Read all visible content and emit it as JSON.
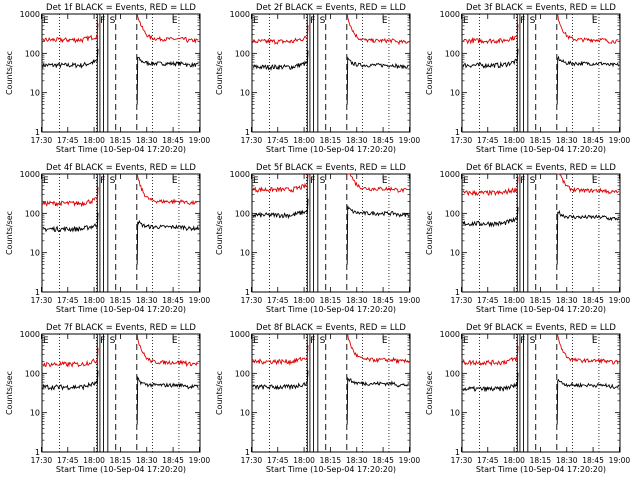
{
  "figure": {
    "xlabel": "Start Time (10-Sep-04 17:20:20)",
    "ylabel": "Counts/sec",
    "ytick_labels": [
      "1",
      "10",
      "100",
      "1000"
    ],
    "xtick_labels": [
      "17:30",
      "17:45",
      "18:00",
      "18:15",
      "18:30",
      "18:45",
      "19:00"
    ],
    "flag_letters": [
      "E",
      "F",
      "S",
      "E"
    ]
  },
  "chart_data": [
    {
      "type": "line",
      "title": "Det 1f BLACK = Events, RED = LLD",
      "yscale": "log",
      "ylim": [
        1,
        1000
      ],
      "xlim_min": [
        10,
        100
      ],
      "series": [
        {
          "color": "#000000",
          "level_before": 50,
          "level_after": 55
        },
        {
          "color": "#dd0000",
          "level_before": 220,
          "level_after": 230
        }
      ]
    },
    {
      "type": "line",
      "title": "Det 2f BLACK = Events, RED = LLD",
      "yscale": "log",
      "ylim": [
        1,
        1000
      ],
      "xlim_min": [
        10,
        100
      ],
      "series": [
        {
          "color": "#000000",
          "level_before": 45,
          "level_after": 50
        },
        {
          "color": "#dd0000",
          "level_before": 200,
          "level_after": 210
        }
      ]
    },
    {
      "type": "line",
      "title": "Det 3f BLACK = Events, RED = LLD",
      "yscale": "log",
      "ylim": [
        1,
        1000
      ],
      "xlim_min": [
        10,
        100
      ],
      "series": [
        {
          "color": "#000000",
          "level_before": 50,
          "level_after": 55
        },
        {
          "color": "#dd0000",
          "level_before": 210,
          "level_after": 220
        }
      ]
    },
    {
      "type": "line",
      "title": "Det 4f BLACK = Events, RED = LLD",
      "yscale": "log",
      "ylim": [
        1,
        1000
      ],
      "xlim_min": [
        10,
        100
      ],
      "series": [
        {
          "color": "#000000",
          "level_before": 40,
          "level_after": 45
        },
        {
          "color": "#dd0000",
          "level_before": 180,
          "level_after": 200
        }
      ]
    },
    {
      "type": "line",
      "title": "Det 5f BLACK = Events, RED = LLD",
      "yscale": "log",
      "ylim": [
        1,
        1000
      ],
      "xlim_min": [
        10,
        100
      ],
      "series": [
        {
          "color": "#000000",
          "level_before": 90,
          "level_after": 100
        },
        {
          "color": "#dd0000",
          "level_before": 400,
          "level_after": 420
        }
      ]
    },
    {
      "type": "line",
      "title": "Det 6f BLACK = Events, RED = LLD",
      "yscale": "log",
      "ylim": [
        1,
        1000
      ],
      "xlim_min": [
        10,
        100
      ],
      "series": [
        {
          "color": "#000000",
          "level_before": 55,
          "level_after": 80
        },
        {
          "color": "#dd0000",
          "level_before": 330,
          "level_after": 380
        }
      ]
    },
    {
      "type": "line",
      "title": "Det 7f BLACK = Events, RED = LLD",
      "yscale": "log",
      "ylim": [
        1,
        1000
      ],
      "xlim_min": [
        10,
        100
      ],
      "series": [
        {
          "color": "#000000",
          "level_before": 45,
          "level_after": 50
        },
        {
          "color": "#dd0000",
          "level_before": 170,
          "level_after": 190
        }
      ]
    },
    {
      "type": "line",
      "title": "Det 8f BLACK = Events, RED = LLD",
      "yscale": "log",
      "ylim": [
        1,
        1000
      ],
      "xlim_min": [
        10,
        100
      ],
      "series": [
        {
          "color": "#000000",
          "level_before": 45,
          "level_after": 55
        },
        {
          "color": "#dd0000",
          "level_before": 200,
          "level_after": 220
        }
      ]
    },
    {
      "type": "line",
      "title": "Det 9f BLACK = Events, RED = LLD",
      "yscale": "log",
      "ylim": [
        1,
        1000
      ],
      "xlim_min": [
        10,
        100
      ],
      "series": [
        {
          "color": "#000000",
          "level_before": 40,
          "level_after": 50
        },
        {
          "color": "#dd0000",
          "level_before": 190,
          "level_after": 210
        }
      ]
    }
  ]
}
